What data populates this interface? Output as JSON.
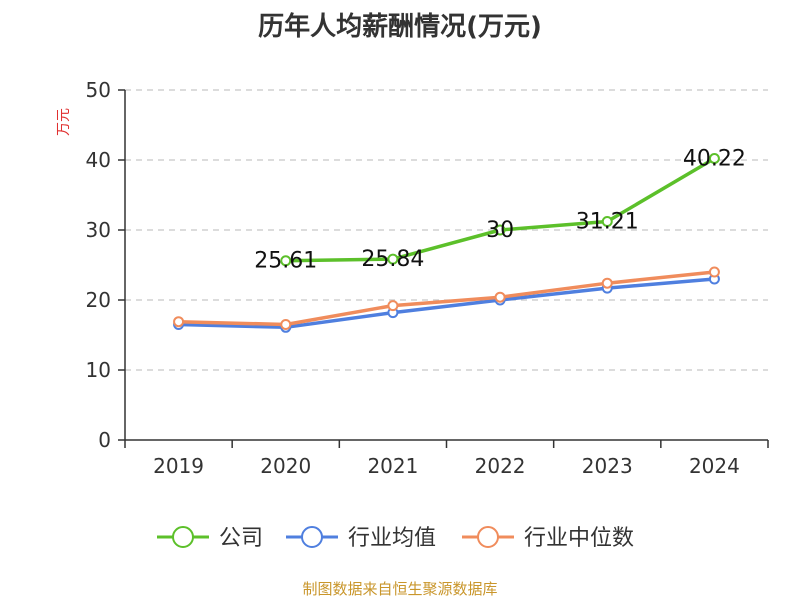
{
  "chart_data": {
    "type": "line",
    "title": "历年人均薪酬情况(万元)",
    "ylabel": "万元",
    "xlabel": "",
    "ylim": [
      0,
      50
    ],
    "yticks": [
      0,
      10,
      20,
      30,
      40,
      50
    ],
    "grid": true,
    "legend_position": "bottom",
    "categories": [
      "2019",
      "2020",
      "2021",
      "2022",
      "2023",
      "2024"
    ],
    "series": [
      {
        "name": "公司",
        "color": "#5cc02a",
        "values": [
          null,
          25.61,
          25.84,
          30,
          31.21,
          40.22
        ],
        "labels": [
          null,
          "25.61",
          "25.84",
          "30",
          "31.21",
          "40.22"
        ]
      },
      {
        "name": "行业均值",
        "color": "#4f7fdf",
        "values": [
          16.5,
          16.1,
          18.2,
          20.0,
          21.7,
          23.0
        ]
      },
      {
        "name": "行业中位数",
        "color": "#f08c5c",
        "values": [
          16.9,
          16.5,
          19.2,
          20.4,
          22.4,
          24.0
        ]
      }
    ]
  },
  "source": "制图数据来自恒生聚源数据库"
}
